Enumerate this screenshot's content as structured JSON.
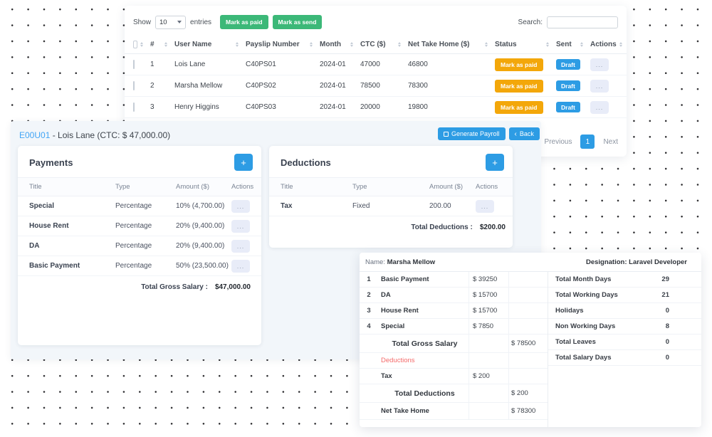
{
  "colors": {
    "accent_blue": "#2d9ce4",
    "success_green": "#3cb878",
    "warning_amber": "#f3a70a",
    "danger_red": "#f46a6a",
    "link_blue": "#42a5f5"
  },
  "payslips_panel": {
    "show_label": "Show",
    "entries_value": "10",
    "entries_label": "entries",
    "mark_paid_button": "Mark as paid",
    "mark_send_button": "Mark as send",
    "search_label": "Search:",
    "columns": {
      "num": "#",
      "user": "User Name",
      "payslip": "Payslip Number",
      "month": "Month",
      "ctc": "CTC ($)",
      "nth": "Net Take Home ($)",
      "status": "Status",
      "sent": "Sent",
      "actions": "Actions"
    },
    "ellipsis": "...",
    "rows": [
      {
        "index": "1",
        "user_name": "Lois Lane",
        "payslip_number": "C40PS01",
        "month": "2024-01",
        "ctc": "47000",
        "net_take_home": "46800",
        "status": "Mark as paid",
        "sent": "Draft"
      },
      {
        "index": "2",
        "user_name": "Marsha Mellow",
        "payslip_number": "C40PS02",
        "month": "2024-01",
        "ctc": "78500",
        "net_take_home": "78300",
        "status": "Mark as paid",
        "sent": "Draft"
      },
      {
        "index": "3",
        "user_name": "Henry Higgins",
        "payslip_number": "C40PS03",
        "month": "2024-01",
        "ctc": "20000",
        "net_take_home": "19800",
        "status": "Mark as paid",
        "sent": "Draft"
      }
    ],
    "pagination": {
      "previous": "Previous",
      "page": "1",
      "next": "Next"
    }
  },
  "detail_header": {
    "code": "E00U01",
    "rest": "- Lois Lane (CTC: $ 47,000.00)",
    "generate_button": "Generate Payroll",
    "back_chevron": "‹",
    "back_button": "Back"
  },
  "payments_card": {
    "title": "Payments",
    "add_button": "+",
    "col_title": "Title",
    "col_type": "Type",
    "col_amount": "Amount ($)",
    "col_actions": "Actions",
    "rows": [
      {
        "title": "Special",
        "type": "Percentage",
        "amount": "10% (4,700.00)"
      },
      {
        "title": "House Rent",
        "type": "Percentage",
        "amount": "20% (9,400.00)"
      },
      {
        "title": "DA",
        "type": "Percentage",
        "amount": "20% (9,400.00)"
      },
      {
        "title": "Basic Payment",
        "type": "Percentage",
        "amount": "50% (23,500.00)"
      }
    ],
    "total_label": "Total Gross Salary :",
    "total_value": "$47,000.00"
  },
  "deductions_card": {
    "title": "Deductions",
    "add_button": "+",
    "col_title": "Title",
    "col_type": "Type",
    "col_amount": "Amount ($)",
    "col_actions": "Actions",
    "rows": [
      {
        "title": "Tax",
        "type": "Fixed",
        "amount": "200.00"
      }
    ],
    "total_label": "Total Deductions :",
    "total_value": "$200.00"
  },
  "payslip_preview": {
    "name_label": "Name:",
    "name": "Marsha Mellow",
    "designation_label": "Designation:",
    "designation": "Laravel Developer",
    "items": [
      {
        "no": "1",
        "title": "Basic Payment",
        "amount": "$ 39250"
      },
      {
        "no": "2",
        "title": "DA",
        "amount": "$ 15700"
      },
      {
        "no": "3",
        "title": "House Rent",
        "amount": "$ 15700"
      },
      {
        "no": "4",
        "title": "Special",
        "amount": "$ 7850"
      }
    ],
    "gross_label": "Total Gross Salary",
    "gross_value": "$ 78500",
    "deductions_section_label": "Deductions",
    "tax_row": {
      "title": "Tax",
      "amount": "$ 200"
    },
    "total_deductions_label": "Total Deductions",
    "total_deductions_value": "$ 200",
    "net_label": "Net Take Home",
    "net_value": "$ 78300",
    "days": [
      {
        "label": "Total Month Days",
        "value": "29"
      },
      {
        "label": "Total Working Days",
        "value": "21"
      },
      {
        "label": "Holidays",
        "value": "0"
      },
      {
        "label": "Non Working Days",
        "value": "8"
      },
      {
        "label": "Total Leaves",
        "value": "0"
      },
      {
        "label": "Total Salary Days",
        "value": "0"
      }
    ]
  }
}
